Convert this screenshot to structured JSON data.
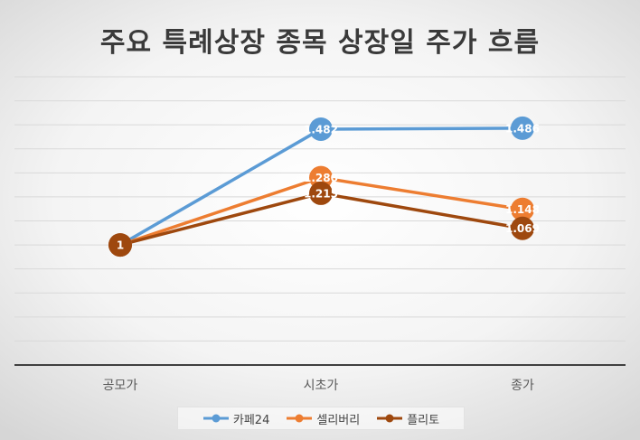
{
  "chart_data": {
    "type": "line",
    "title": "주요 특례상장 종목 상장일 주가 흐름",
    "categories": [
      "공모가",
      "시초가",
      "종가"
    ],
    "ylim": [
      0.5,
      1.7
    ],
    "grid": true,
    "legend_position": "bottom",
    "series": [
      {
        "name": "카페24",
        "color": "#5b9bd5",
        "values": [
          1,
          1.482,
          1.486
        ],
        "labels": [
          "",
          "1.482",
          "1.486"
        ]
      },
      {
        "name": "셀리버리",
        "color": "#ed7d31",
        "values": [
          1,
          1.28,
          1.148
        ],
        "labels": [
          "",
          "1.280",
          "1.148"
        ]
      },
      {
        "name": "플리토",
        "color": "#9e480e",
        "values": [
          1,
          1.215,
          1.069
        ],
        "labels": [
          "1",
          "1.215",
          "1.069"
        ]
      }
    ]
  }
}
